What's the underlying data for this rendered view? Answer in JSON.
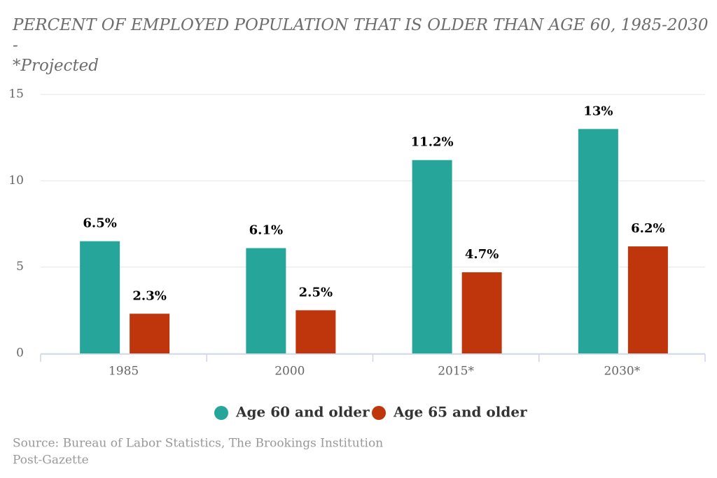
{
  "chart_data": {
    "type": "bar",
    "title": "PERCENT OF EMPLOYED POPULATION THAT IS OLDER THAN AGE 60, 1985-2030",
    "subtitle": [
      "-",
      "*Projected"
    ],
    "categories": [
      "1985",
      "2000",
      "2015*",
      "2030*"
    ],
    "series": [
      {
        "name": "Age 60 and older",
        "color": "#26a69a",
        "values": [
          6.5,
          6.1,
          11.2,
          13
        ],
        "value_labels": [
          "6.5%",
          "6.1%",
          "11.2%",
          "13%"
        ]
      },
      {
        "name": "Age 65 and older",
        "color": "#bf360c",
        "values": [
          2.3,
          2.5,
          4.7,
          6.2
        ],
        "value_labels": [
          "2.3%",
          "2.5%",
          "4.7%",
          "6.2%"
        ]
      }
    ],
    "ylim": [
      0,
      15
    ],
    "yticks": [
      0,
      5,
      10,
      15
    ],
    "grid": true,
    "source": [
      "Source: Bureau of Labor Statistics, The Brookings Institution",
      "Post-Gazette"
    ]
  }
}
